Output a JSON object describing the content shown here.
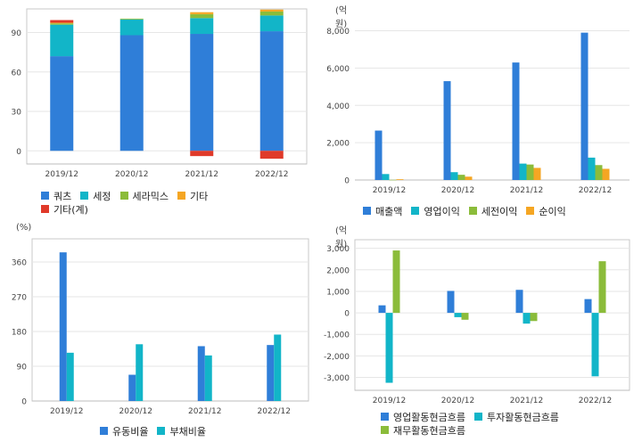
{
  "chart_data": [
    {
      "type": "bar",
      "stacked": true,
      "unit": "",
      "categories": [
        "2019/12",
        "2020/12",
        "2021/12",
        "2022/12"
      ],
      "ylim": [
        -10,
        108
      ],
      "yticks": [
        0,
        30,
        60,
        90
      ],
      "ytick_labels": [
        "0",
        "30",
        "60",
        "90"
      ],
      "grid": true,
      "legend_position": "bottom-left",
      "series": [
        {
          "name": "쿼츠",
          "color": "#2f7ed8",
          "values": [
            72,
            88,
            89,
            91
          ]
        },
        {
          "name": "세정",
          "color": "#12b5c8",
          "values": [
            24,
            12,
            12,
            12
          ]
        },
        {
          "name": "세라믹스",
          "color": "#8bbc3a",
          "values": [
            1,
            0.6,
            3,
            3
          ]
        },
        {
          "name": "기타",
          "color": "#f5a623",
          "values": [
            0.5,
            0,
            1.5,
            1.5
          ]
        },
        {
          "name": "기타(계)",
          "color": "#e03a2a",
          "values": [
            2,
            0,
            -4,
            -6
          ]
        }
      ],
      "legend_rows": [
        [
          "0",
          "1",
          "2",
          "3"
        ],
        [
          "4"
        ]
      ]
    },
    {
      "type": "bar",
      "unit": "(억원)",
      "categories": [
        "2019/12",
        "2020/12",
        "2021/12",
        "2022/12"
      ],
      "ylim": [
        0,
        8600
      ],
      "yticks": [
        0,
        2000,
        4000,
        6000,
        8000
      ],
      "ytick_labels": [
        "0",
        "2,000",
        "4,000",
        "6,000",
        "8,000"
      ],
      "grid": true,
      "legend_position": "bottom-left",
      "series": [
        {
          "name": "매출액",
          "color": "#2f7ed8",
          "values": [
            2650,
            5300,
            6300,
            7900
          ]
        },
        {
          "name": "영업이익",
          "color": "#12b5c8",
          "values": [
            320,
            420,
            880,
            1200
          ]
        },
        {
          "name": "세전이익",
          "color": "#8bbc3a",
          "values": [
            10,
            280,
            830,
            800
          ]
        },
        {
          "name": "순이익",
          "color": "#f5a623",
          "values": [
            40,
            180,
            650,
            600
          ]
        }
      ],
      "legend_rows": [
        [
          "0",
          "1",
          "2",
          "3"
        ]
      ]
    },
    {
      "type": "bar",
      "unit": "(%)",
      "categories": [
        "2019/12",
        "2020/12",
        "2021/12",
        "2022/12"
      ],
      "ylim": [
        0,
        420
      ],
      "yticks": [
        0,
        90,
        180,
        270,
        360
      ],
      "ytick_labels": [
        "0",
        "90",
        "180",
        "270",
        "360"
      ],
      "grid": true,
      "legend_position": "bottom-center",
      "series": [
        {
          "name": "유동비율",
          "color": "#2f7ed8",
          "values": [
            385,
            68,
            142,
            145
          ]
        },
        {
          "name": "부채비율",
          "color": "#12b5c8",
          "values": [
            125,
            147,
            118,
            172
          ]
        }
      ],
      "legend_rows": [
        [
          "0",
          "1"
        ]
      ]
    },
    {
      "type": "bar",
      "unit": "(억원)",
      "categories": [
        "2019/12",
        "2020/12",
        "2021/12",
        "2022/12"
      ],
      "ylim": [
        -3600,
        3400
      ],
      "yticks": [
        -3000,
        -2000,
        -1000,
        0,
        1000,
        2000,
        3000
      ],
      "ytick_labels": [
        "-3,000",
        "-2,000",
        "-1,000",
        "0",
        "1,000",
        "2,000",
        "3,000"
      ],
      "grid": true,
      "legend_position": "bottom-center",
      "series": [
        {
          "name": "영업활동현금흐름",
          "color": "#2f7ed8",
          "values": [
            350,
            1020,
            1070,
            640
          ]
        },
        {
          "name": "투자활동현금흐름",
          "color": "#12b5c8",
          "values": [
            -3250,
            -200,
            -500,
            -2950
          ]
        },
        {
          "name": "재무활동현금흐름",
          "color": "#8bbc3a",
          "values": [
            2900,
            -320,
            -380,
            2400
          ]
        }
      ],
      "legend_rows": [
        [
          "0",
          "1"
        ],
        [
          "2"
        ]
      ]
    }
  ]
}
